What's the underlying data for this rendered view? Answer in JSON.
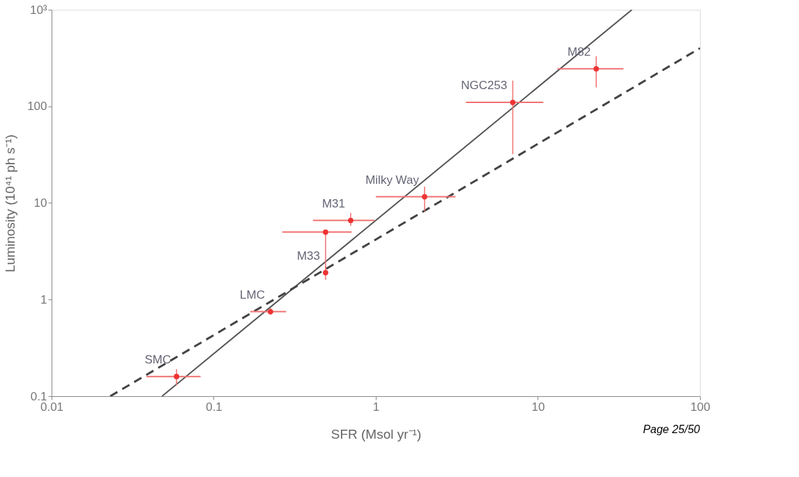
{
  "chart_data": {
    "type": "scatter",
    "xlabel": "SFR (Msol yr⁻¹)",
    "ylabel": "Luminosity (10⁴¹ ph s⁻¹)",
    "log": "xy",
    "grid": false,
    "xlim": [
      0.01,
      100
    ],
    "xticks": [
      0.01,
      0.1,
      1,
      10,
      100
    ],
    "ylim": [
      0.1,
      1000
    ],
    "yticks": [
      0.1,
      1,
      10,
      100,
      {
        "value": 1000,
        "label": "10³"
      }
    ],
    "series": [
      {
        "type": "line",
        "color": "#555555",
        "line_style": "solid",
        "marker": "none",
        "x": [
          0.048,
          38
        ],
        "values": [
          0.1,
          1000
        ]
      },
      {
        "type": "line",
        "color": "#444444",
        "line_style": "dashed",
        "marker": "none",
        "x": [
          0.023,
          100
        ],
        "values": [
          0.1,
          400
        ]
      },
      {
        "color": "#ee3333",
        "marker": "circle",
        "x": [
          0.059,
          0.224,
          0.49,
          0.49,
          0.7,
          2.0,
          7.0,
          22.9
        ],
        "values": [
          0.16,
          0.75,
          5.0,
          1.9,
          6.6,
          11.6,
          110,
          245
        ],
        "errors": [
          [
            0.13,
            0.19
          ],
          [
            0.7,
            0.82
          ],
          [
            1.9,
            5.0
          ],
          [
            1.6,
            2.2
          ],
          [
            5.8,
            7.9
          ],
          [
            8.2,
            14.8
          ],
          [
            32,
            185
          ],
          [
            157,
            330
          ]
        ],
        "xerrors": [
          [
            0.0385,
            0.083
          ],
          [
            0.168,
            0.28
          ],
          [
            0.265,
            0.71
          ],
          null,
          [
            0.41,
            0.98
          ],
          [
            1.0,
            3.1
          ],
          [
            3.6,
            10.8
          ],
          [
            13.2,
            33.7
          ]
        ]
      }
    ],
    "annotations": [
      {
        "text": "SMC",
        "x": 0.059,
        "y": 0.16
      },
      {
        "text": "LMC",
        "x": 0.224,
        "y": 0.75
      },
      {
        "text": "M33",
        "x": 0.49,
        "y": 1.9
      },
      {
        "text": "M31",
        "x": 0.7,
        "y": 6.6
      },
      {
        "text": "Milky Way",
        "x": 2.0,
        "y": 11.6
      },
      {
        "text": "NGC253",
        "x": 7.0,
        "y": 110
      },
      {
        "text": "M82",
        "x": 22.9,
        "y": 245
      },
      "Page 25/50"
    ]
  }
}
